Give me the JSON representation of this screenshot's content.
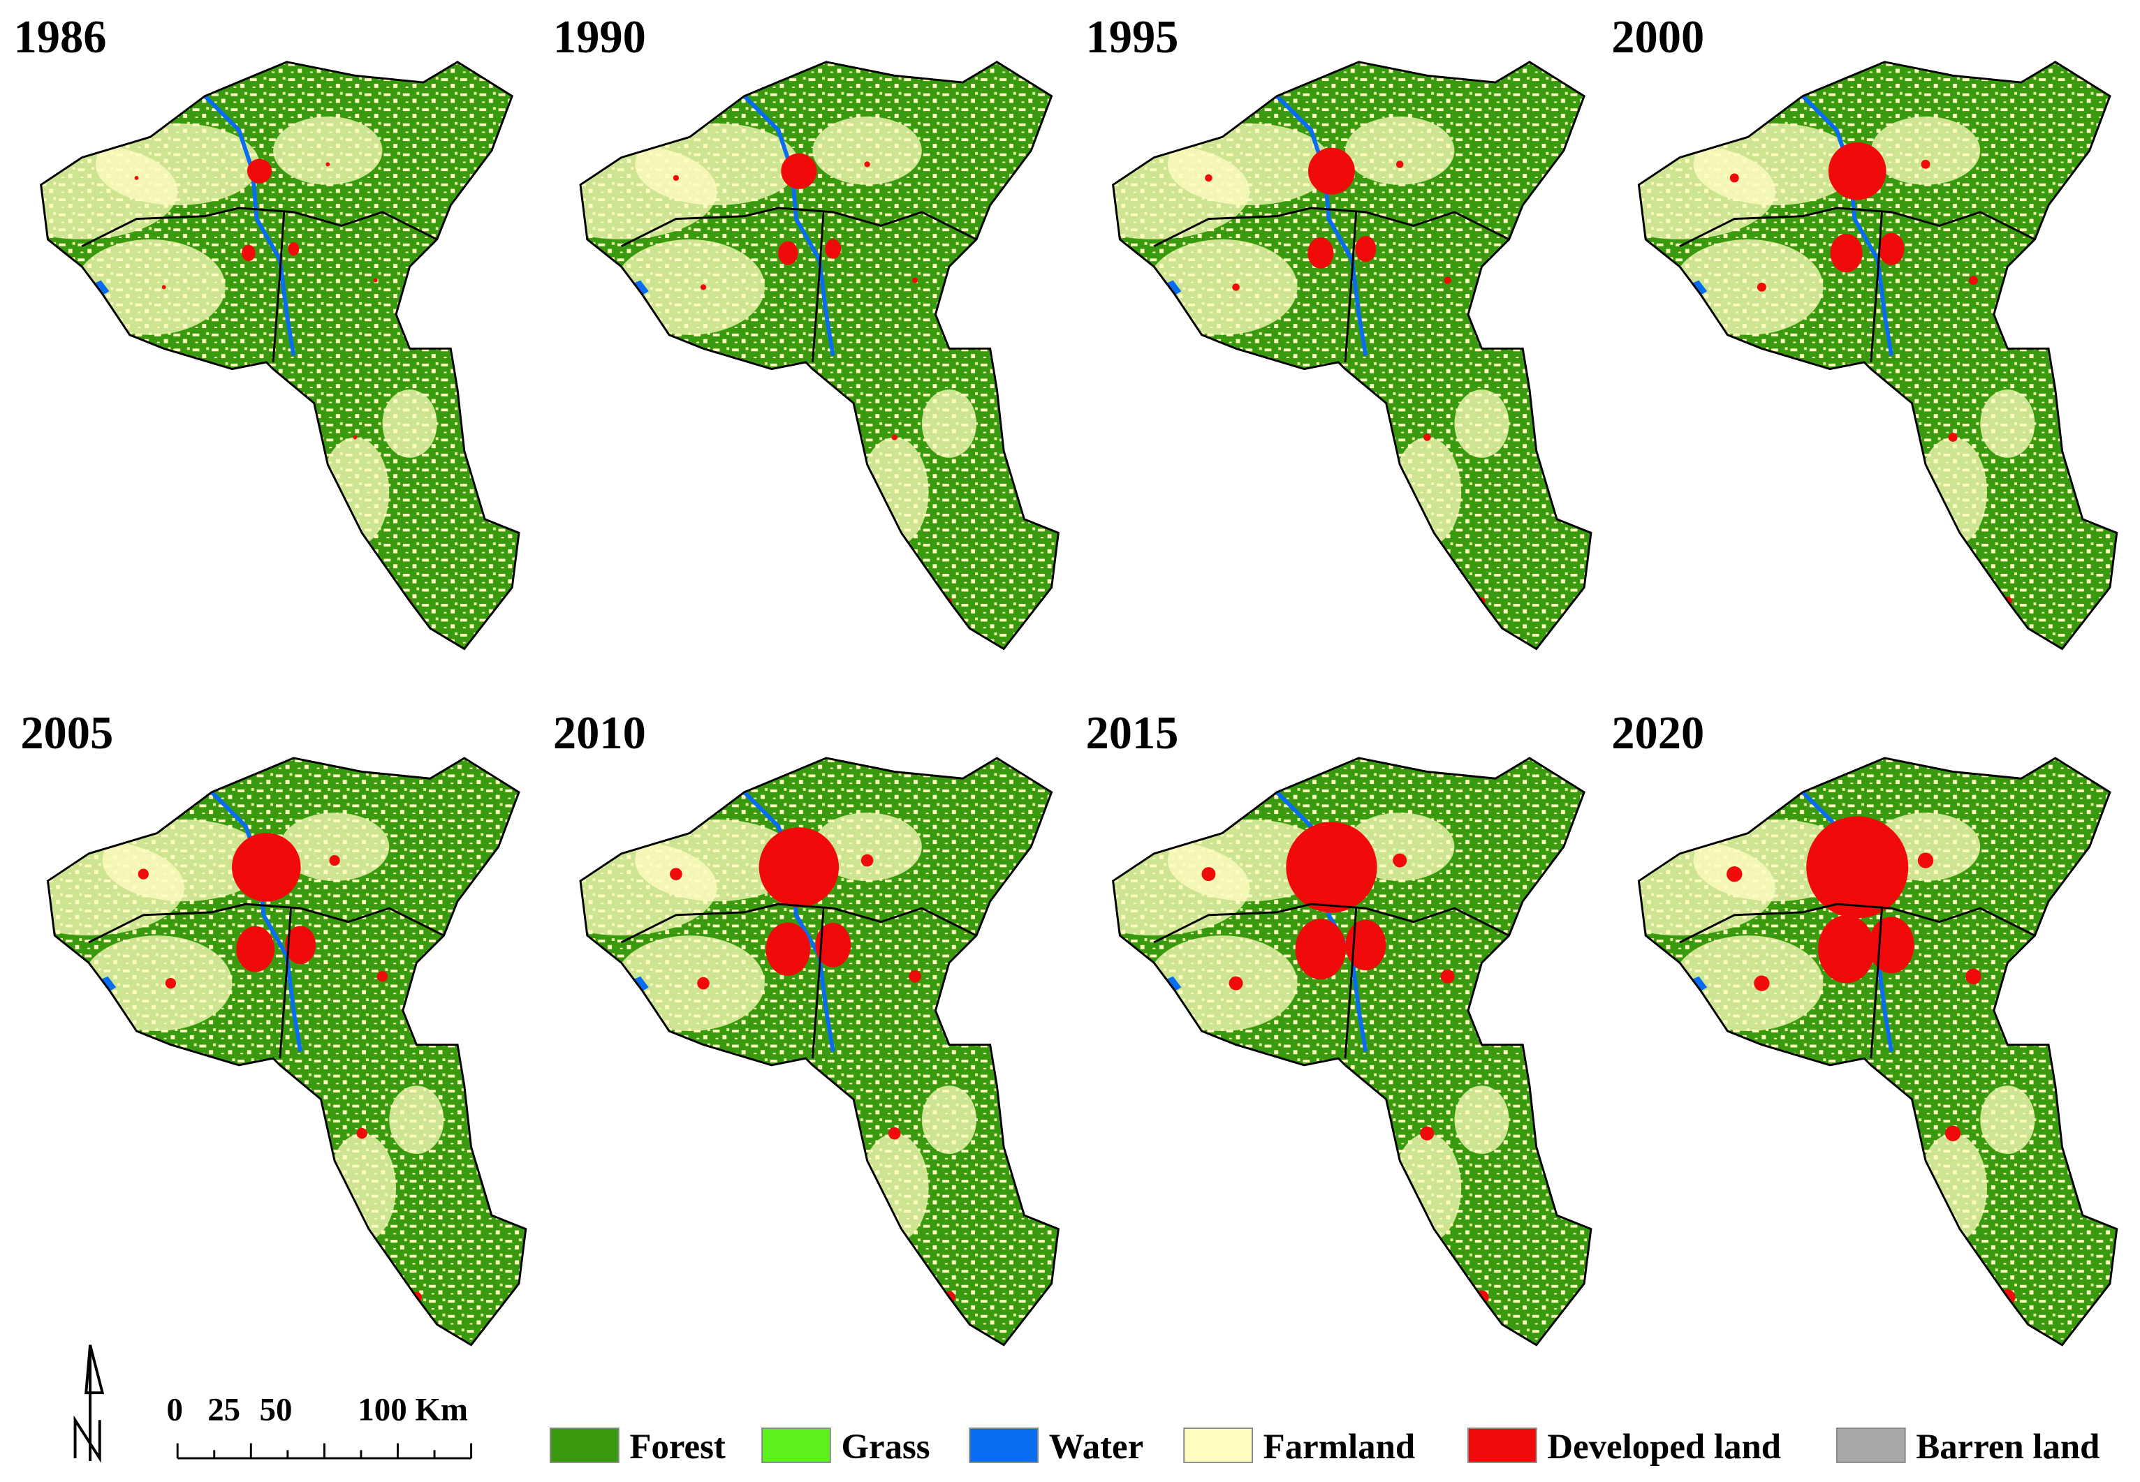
{
  "panels": [
    {
      "label": "1986"
    },
    {
      "label": "1990"
    },
    {
      "label": "1995"
    },
    {
      "label": "2000"
    },
    {
      "label": "2005"
    },
    {
      "label": "2010"
    },
    {
      "label": "2015"
    },
    {
      "label": "2020"
    }
  ],
  "scale_bar": {
    "labels": [
      "0",
      "25",
      "50",
      "100 Km"
    ]
  },
  "legend": {
    "items": [
      {
        "label": "Forest",
        "color": "#3a9a0f"
      },
      {
        "label": "Grass",
        "color": "#5cf01e"
      },
      {
        "label": "Water",
        "color": "#0a6cf0"
      },
      {
        "label": "Farmland",
        "color": "#fffcc0"
      },
      {
        "label": "Developed land",
        "color": "#f00a0a"
      },
      {
        "label": "Barren land",
        "color": "#a8a8a8"
      }
    ]
  }
}
